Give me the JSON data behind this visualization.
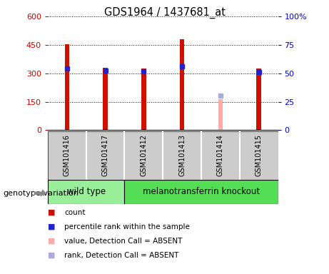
{
  "title": "GDS1964 / 1437681_at",
  "samples": [
    "GSM101416",
    "GSM101417",
    "GSM101412",
    "GSM101413",
    "GSM101414",
    "GSM101415"
  ],
  "red_bars": [
    452,
    330,
    325,
    480,
    null,
    325
  ],
  "pink_bars": [
    null,
    null,
    null,
    null,
    162,
    null
  ],
  "blue_markers_left": [
    325,
    315,
    312,
    335,
    null,
    308
  ],
  "purple_markers_left": [
    null,
    null,
    null,
    null,
    183,
    null
  ],
  "left_ylim": [
    0,
    600
  ],
  "right_ylim": [
    0,
    100
  ],
  "left_yticks": [
    0,
    150,
    300,
    450,
    600
  ],
  "right_yticks": [
    0,
    25,
    50,
    75,
    100
  ],
  "right_yticklabels": [
    "0",
    "25",
    "50",
    "75",
    "100%"
  ],
  "left_tick_color": "#cc0000",
  "right_tick_color": "#0000cc",
  "bar_width": 0.12,
  "red_color": "#cc1100",
  "pink_color": "#ffaaaa",
  "blue_color": "#2222cc",
  "purple_color": "#aaaadd",
  "wild_type_label": "wild type",
  "knockout_label": "melanotransferrin knockout",
  "genotype_label": "genotype/variation",
  "group_bg_color": "#cccccc",
  "wt_box_color": "#99ee99",
  "ko_box_color": "#55dd55",
  "legend_items": [
    "count",
    "percentile rank within the sample",
    "value, Detection Call = ABSENT",
    "rank, Detection Call = ABSENT"
  ],
  "legend_colors": [
    "#cc1100",
    "#2222cc",
    "#ffaaaa",
    "#aaaadd"
  ]
}
